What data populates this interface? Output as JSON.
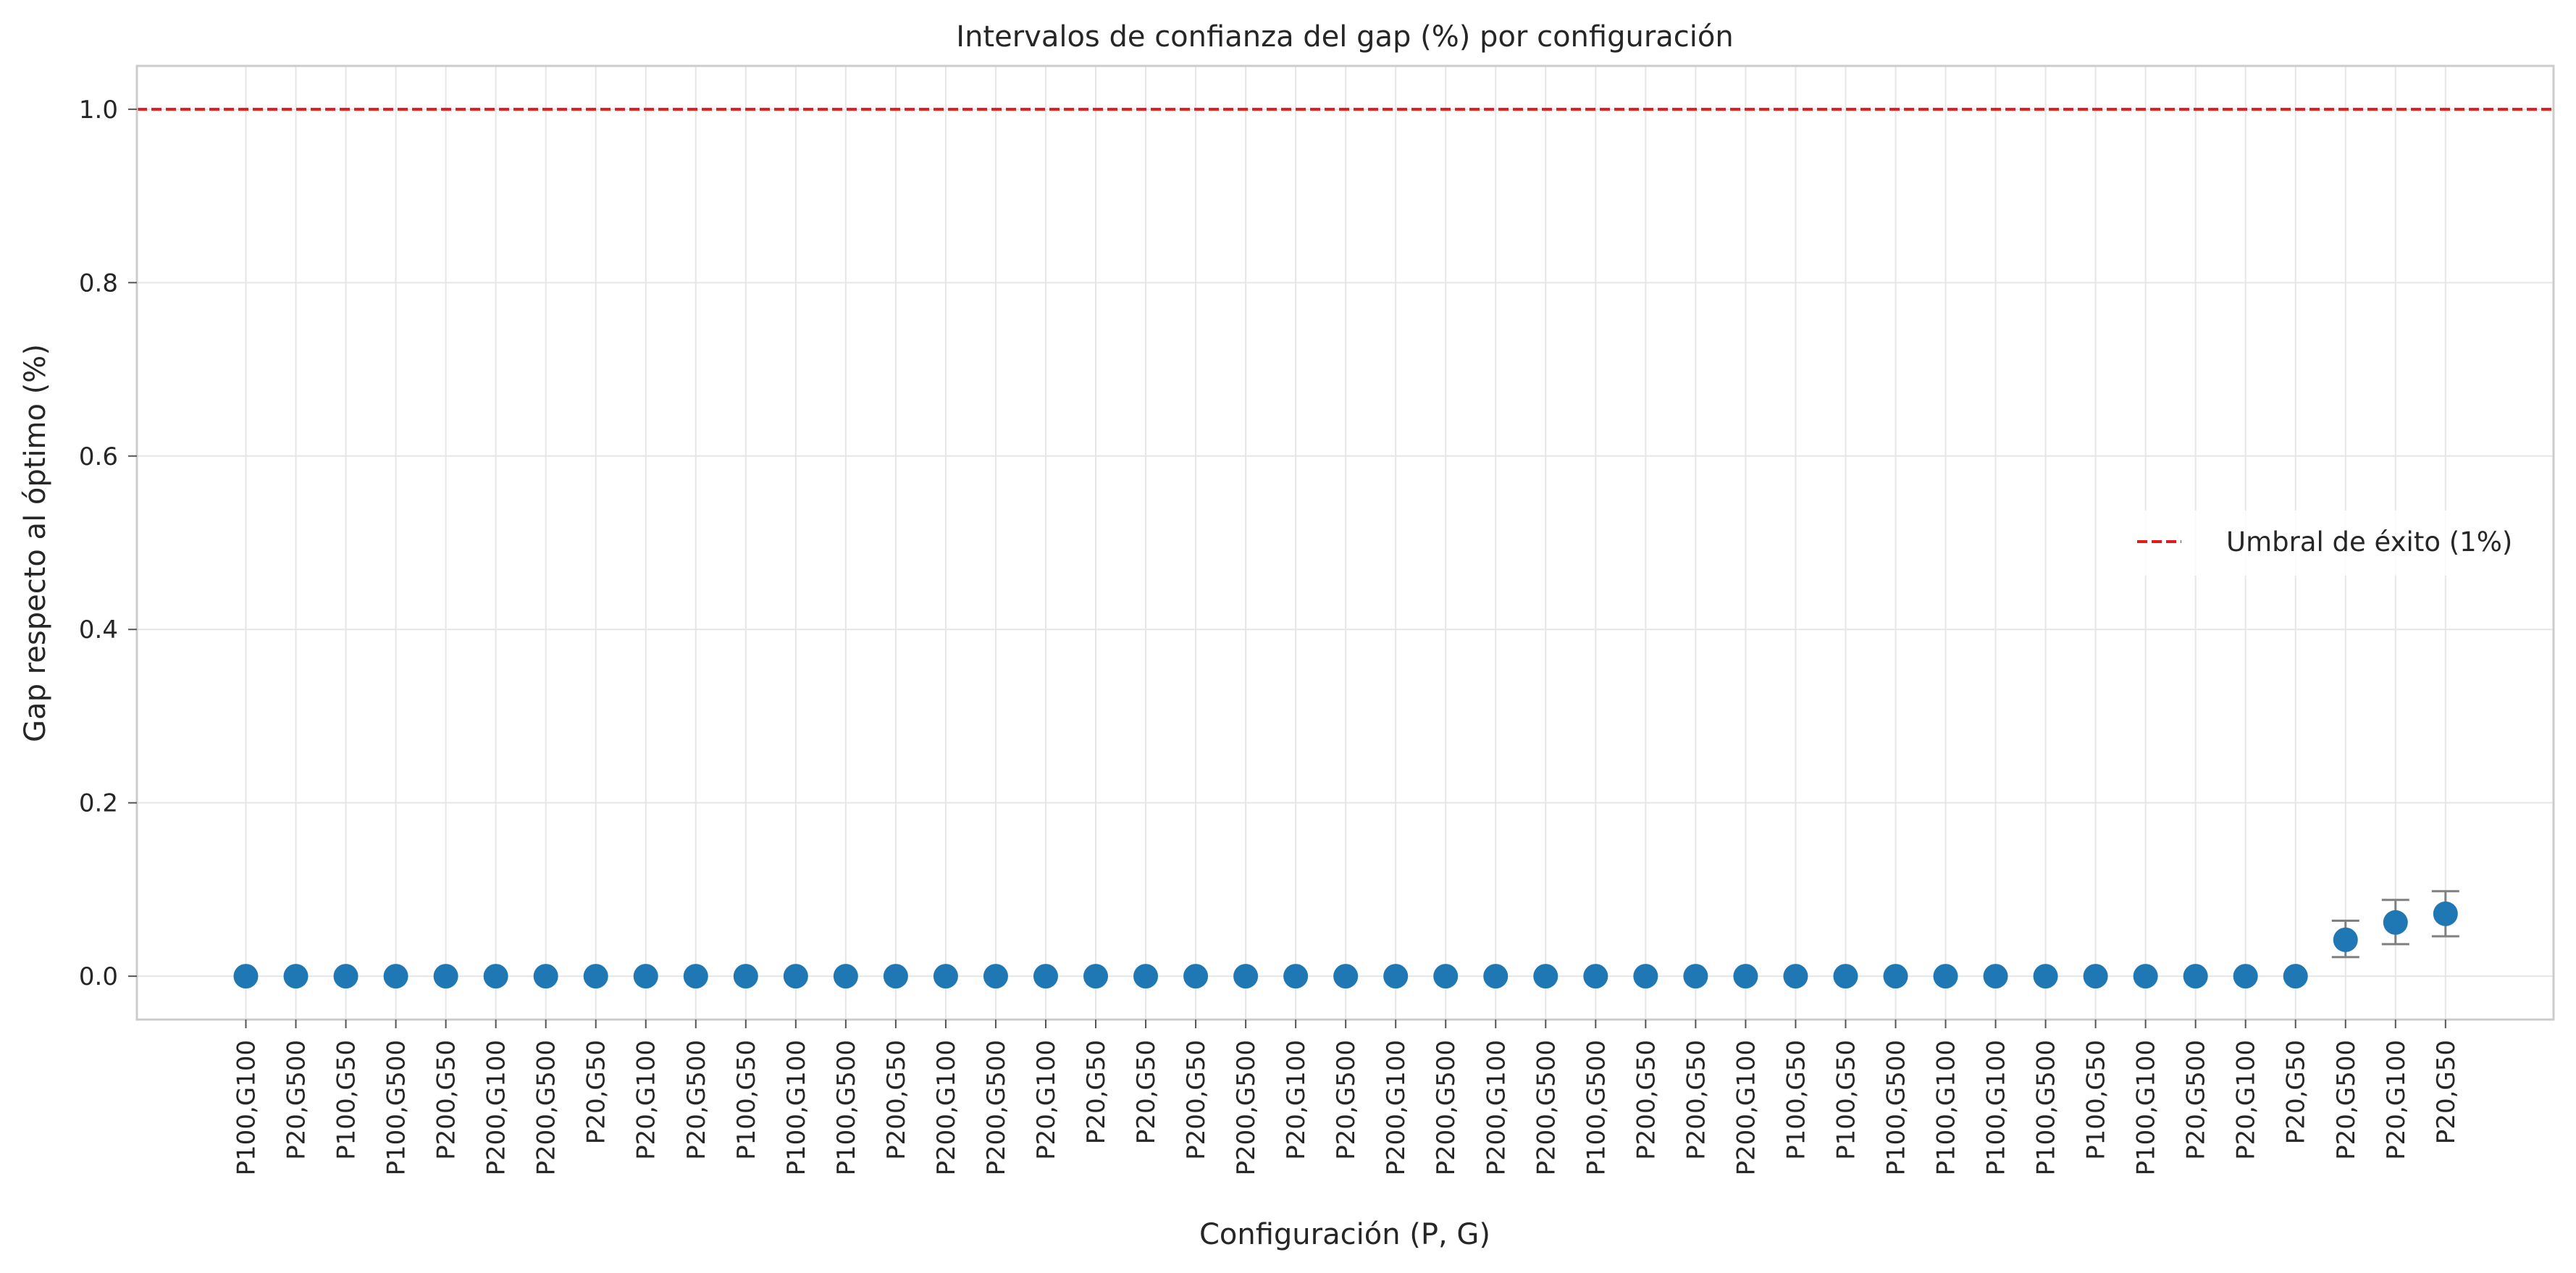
{
  "chart_data": {
    "type": "scatter",
    "title": "Intervalos de confianza del gap (%) por configuración",
    "xlabel": "Configuración (P, G)",
    "ylabel": "Gap respecto al óptimo (%)",
    "ylim": [
      -0.05,
      1.05
    ],
    "yticks": [
      "0.0",
      "0.2",
      "0.4",
      "0.6",
      "0.8",
      "1.0"
    ],
    "grid": true,
    "legend_placement": "center-right",
    "colors": {
      "point": "#1f77b4",
      "errorbar": "#808080",
      "threshold": "#e41a1c",
      "grid": "#e6e6e6",
      "spine": "#cccccc"
    },
    "categories": [
      "P100,G100",
      "P20,G500",
      "P100,G50",
      "P100,G500",
      "P200,G50",
      "P200,G100",
      "P200,G500",
      "P20,G50",
      "P20,G100",
      "P20,G500",
      "P100,G50",
      "P100,G100",
      "P100,G500",
      "P200,G50",
      "P200,G100",
      "P200,G500",
      "P20,G100",
      "P20,G50",
      "P20,G50",
      "P200,G50",
      "P200,G500",
      "P20,G100",
      "P20,G500",
      "P200,G100",
      "P200,G500",
      "P200,G100",
      "P200,G500",
      "P100,G500",
      "P200,G50",
      "P200,G50",
      "P200,G100",
      "P100,G50",
      "P100,G50",
      "P100,G500",
      "P100,G100",
      "P100,G100",
      "P100,G500",
      "P100,G50",
      "P100,G100",
      "P20,G500",
      "P20,G100",
      "P20,G50",
      "P20,G500",
      "P20,G100",
      "P20,G50"
    ],
    "series": [
      {
        "values": [
          0,
          0,
          0,
          0,
          0,
          0,
          0,
          0,
          0,
          0,
          0,
          0,
          0,
          0,
          0,
          0,
          0,
          0,
          0,
          0,
          0,
          0,
          0,
          0,
          0,
          0,
          0,
          0,
          0,
          0,
          0,
          0,
          0,
          0,
          0,
          0,
          0,
          0,
          0,
          0,
          0,
          0,
          0.042,
          0.062,
          0.072
        ],
        "ci_low": [
          0,
          0,
          0,
          0,
          0,
          0,
          0,
          0,
          0,
          0,
          0,
          0,
          0,
          0,
          0,
          0,
          0,
          0,
          0,
          0,
          0,
          0,
          0,
          0,
          0,
          0,
          0,
          0,
          0,
          0,
          0,
          0,
          0,
          0,
          0,
          0,
          0,
          0,
          0,
          0,
          0,
          0,
          0.022,
          0.037,
          0.046
        ],
        "ci_high": [
          0,
          0,
          0,
          0,
          0,
          0,
          0,
          0,
          0,
          0,
          0,
          0,
          0,
          0,
          0,
          0,
          0,
          0,
          0,
          0,
          0,
          0,
          0,
          0,
          0,
          0,
          0,
          0,
          0,
          0,
          0,
          0,
          0,
          0,
          0,
          0,
          0,
          0,
          0,
          0,
          0,
          0,
          0.064,
          0.088,
          0.098
        ]
      }
    ],
    "reference_line": {
      "y": 1.0,
      "style": "dashed",
      "label": "Umbral de éxito (1%)"
    }
  }
}
